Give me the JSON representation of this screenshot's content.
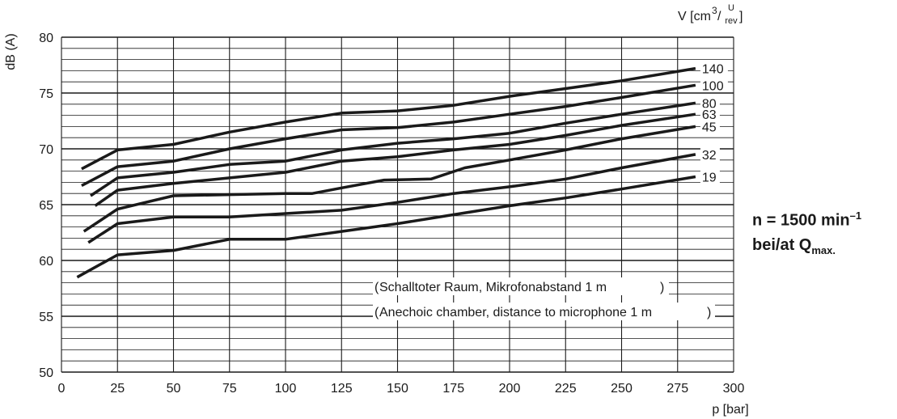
{
  "chart_data": {
    "type": "line",
    "title": "",
    "xlabel": "p [bar]",
    "ylabel": "dB (A)",
    "xlim": [
      0,
      300
    ],
    "ylim": [
      50,
      80
    ],
    "x_ticks": [
      0,
      25,
      50,
      75,
      100,
      125,
      150,
      175,
      200,
      225,
      250,
      275,
      300
    ],
    "y_ticks": [
      50,
      55,
      60,
      65,
      70,
      75,
      80
    ],
    "grid": true,
    "legend_title": {
      "prefix": "V [cm",
      "exp": "3",
      "unit_top": "U",
      "unit_bottom": "rev",
      "suffix": "]"
    },
    "series": [
      {
        "name": "140",
        "points": [
          [
            9,
            68.2
          ],
          [
            25,
            69.9
          ],
          [
            50,
            70.4
          ],
          [
            75,
            71.5
          ],
          [
            100,
            72.4
          ],
          [
            125,
            73.2
          ],
          [
            150,
            73.4
          ],
          [
            175,
            73.9
          ],
          [
            200,
            74.7
          ],
          [
            225,
            75.4
          ],
          [
            250,
            76.1
          ],
          [
            283,
            77.2
          ]
        ]
      },
      {
        "name": "100",
        "points": [
          [
            9,
            66.7
          ],
          [
            25,
            68.4
          ],
          [
            50,
            68.9
          ],
          [
            75,
            70.0
          ],
          [
            100,
            70.9
          ],
          [
            125,
            71.7
          ],
          [
            150,
            71.9
          ],
          [
            175,
            72.4
          ],
          [
            200,
            73.1
          ],
          [
            225,
            73.8
          ],
          [
            250,
            74.6
          ],
          [
            283,
            75.7
          ]
        ]
      },
      {
        "name": "80",
        "points": [
          [
            13,
            65.8
          ],
          [
            25,
            67.4
          ],
          [
            50,
            67.9
          ],
          [
            75,
            68.6
          ],
          [
            100,
            68.9
          ],
          [
            125,
            69.9
          ],
          [
            150,
            70.5
          ],
          [
            175,
            70.9
          ],
          [
            200,
            71.4
          ],
          [
            225,
            72.3
          ],
          [
            250,
            73.1
          ],
          [
            283,
            74.1
          ]
        ]
      },
      {
        "name": "63",
        "points": [
          [
            15,
            64.9
          ],
          [
            25,
            66.3
          ],
          [
            50,
            66.9
          ],
          [
            75,
            67.4
          ],
          [
            100,
            67.9
          ],
          [
            125,
            68.9
          ],
          [
            150,
            69.3
          ],
          [
            175,
            69.9
          ],
          [
            200,
            70.4
          ],
          [
            225,
            71.2
          ],
          [
            250,
            72.1
          ],
          [
            283,
            73.1
          ]
        ]
      },
      {
        "name": "45",
        "points": [
          [
            10,
            62.6
          ],
          [
            25,
            64.6
          ],
          [
            50,
            65.8
          ],
          [
            75,
            65.9
          ],
          [
            100,
            66.0
          ],
          [
            112,
            66.0
          ],
          [
            125,
            66.5
          ],
          [
            144,
            67.2
          ],
          [
            165,
            67.3
          ],
          [
            180,
            68.3
          ],
          [
            200,
            69.0
          ],
          [
            225,
            69.9
          ],
          [
            250,
            70.9
          ],
          [
            283,
            72.0
          ]
        ]
      },
      {
        "name": "32",
        "points": [
          [
            12,
            61.6
          ],
          [
            25,
            63.3
          ],
          [
            50,
            63.9
          ],
          [
            75,
            63.9
          ],
          [
            100,
            64.2
          ],
          [
            125,
            64.5
          ],
          [
            150,
            65.2
          ],
          [
            175,
            66.0
          ],
          [
            200,
            66.6
          ],
          [
            225,
            67.3
          ],
          [
            250,
            68.3
          ],
          [
            283,
            69.5
          ]
        ]
      },
      {
        "name": "19",
        "points": [
          [
            7,
            58.5
          ],
          [
            25,
            60.5
          ],
          [
            50,
            60.9
          ],
          [
            75,
            61.9
          ],
          [
            100,
            61.9
          ],
          [
            125,
            62.6
          ],
          [
            150,
            63.3
          ],
          [
            175,
            64.1
          ],
          [
            200,
            64.9
          ],
          [
            225,
            65.6
          ],
          [
            250,
            66.4
          ],
          [
            283,
            67.5
          ]
        ]
      }
    ],
    "annotations": [
      "Schalltoter Raum, Mikrofonabstand 1 m",
      "Anechoic chamber, distance to microphone 1 m"
    ]
  },
  "side_note": {
    "line1_text": "n = 1500 min",
    "line1_exp": "–1",
    "line2_text": "bei/at Q",
    "line2_sub": "max."
  }
}
